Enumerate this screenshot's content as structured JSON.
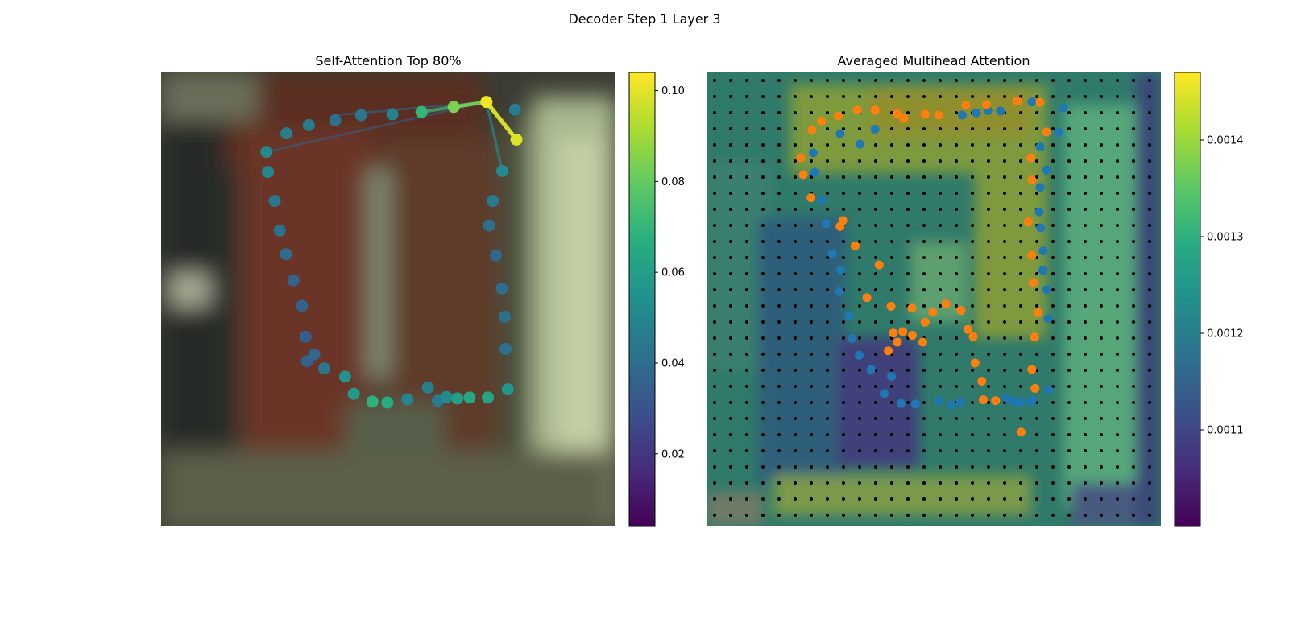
{
  "figure": {
    "title": "Decoder Step 1 Layer 3"
  },
  "chart_data": [
    {
      "type": "scatter",
      "title": "Self-Attention Top 80%",
      "xlim": [
        0,
        1
      ],
      "ylim": [
        0,
        1
      ],
      "grid": false,
      "colorbar": {
        "colormap": "viridis",
        "range": [
          0.004,
          0.104
        ],
        "tick_values": [
          0.02,
          0.04,
          0.06,
          0.08,
          0.1
        ],
        "tick_labels": [
          "0.02",
          "0.04",
          "0.06",
          "0.08",
          "0.10"
        ]
      },
      "query_point": {
        "x": 0.716,
        "y": 0.935,
        "value": 0.102
      },
      "links": [
        {
          "x": 0.782,
          "y": 0.852,
          "value": 0.099
        },
        {
          "x": 0.644,
          "y": 0.924,
          "value": 0.084
        },
        {
          "x": 0.573,
          "y": 0.913,
          "value": 0.07
        },
        {
          "x": 0.751,
          "y": 0.783,
          "value": 0.052
        },
        {
          "x": 0.232,
          "y": 0.825,
          "value": 0.035
        },
        {
          "x": 0.383,
          "y": 0.906,
          "value": 0.036
        }
      ],
      "points": [
        {
          "x": 0.716,
          "y": 0.935,
          "value": 0.102
        },
        {
          "x": 0.644,
          "y": 0.924,
          "value": 0.084
        },
        {
          "x": 0.573,
          "y": 0.913,
          "value": 0.07
        },
        {
          "x": 0.509,
          "y": 0.908,
          "value": 0.048
        },
        {
          "x": 0.44,
          "y": 0.906,
          "value": 0.044
        },
        {
          "x": 0.383,
          "y": 0.895,
          "value": 0.042
        },
        {
          "x": 0.325,
          "y": 0.884,
          "value": 0.046
        },
        {
          "x": 0.276,
          "y": 0.866,
          "value": 0.047
        },
        {
          "x": 0.232,
          "y": 0.825,
          "value": 0.052
        },
        {
          "x": 0.235,
          "y": 0.781,
          "value": 0.05
        },
        {
          "x": 0.25,
          "y": 0.717,
          "value": 0.044
        },
        {
          "x": 0.261,
          "y": 0.652,
          "value": 0.042
        },
        {
          "x": 0.275,
          "y": 0.6,
          "value": 0.04
        },
        {
          "x": 0.291,
          "y": 0.542,
          "value": 0.037
        },
        {
          "x": 0.31,
          "y": 0.486,
          "value": 0.036
        },
        {
          "x": 0.318,
          "y": 0.418,
          "value": 0.034
        },
        {
          "x": 0.321,
          "y": 0.364,
          "value": 0.036
        },
        {
          "x": 0.337,
          "y": 0.379,
          "value": 0.038
        },
        {
          "x": 0.359,
          "y": 0.348,
          "value": 0.044
        },
        {
          "x": 0.405,
          "y": 0.33,
          "value": 0.055
        },
        {
          "x": 0.424,
          "y": 0.292,
          "value": 0.058
        },
        {
          "x": 0.465,
          "y": 0.275,
          "value": 0.068
        },
        {
          "x": 0.498,
          "y": 0.273,
          "value": 0.066
        },
        {
          "x": 0.542,
          "y": 0.28,
          "value": 0.049
        },
        {
          "x": 0.587,
          "y": 0.306,
          "value": 0.047
        },
        {
          "x": 0.609,
          "y": 0.277,
          "value": 0.045
        },
        {
          "x": 0.628,
          "y": 0.285,
          "value": 0.052
        },
        {
          "x": 0.652,
          "y": 0.282,
          "value": 0.06
        },
        {
          "x": 0.679,
          "y": 0.284,
          "value": 0.064
        },
        {
          "x": 0.719,
          "y": 0.284,
          "value": 0.062
        },
        {
          "x": 0.763,
          "y": 0.302,
          "value": 0.057
        },
        {
          "x": 0.758,
          "y": 0.391,
          "value": 0.042
        },
        {
          "x": 0.756,
          "y": 0.462,
          "value": 0.041
        },
        {
          "x": 0.75,
          "y": 0.524,
          "value": 0.04
        },
        {
          "x": 0.737,
          "y": 0.597,
          "value": 0.038
        },
        {
          "x": 0.722,
          "y": 0.663,
          "value": 0.041
        },
        {
          "x": 0.73,
          "y": 0.717,
          "value": 0.045
        },
        {
          "x": 0.751,
          "y": 0.783,
          "value": 0.052
        },
        {
          "x": 0.782,
          "y": 0.852,
          "value": 0.099
        },
        {
          "x": 0.779,
          "y": 0.918,
          "value": 0.046
        }
      ]
    },
    {
      "type": "heatmap",
      "title": "Averaged Multihead Attention",
      "xlim": [
        0,
        1
      ],
      "ylim": [
        0,
        1
      ],
      "grid_points": {
        "rows": 28,
        "cols": 28,
        "marker": "black dot"
      },
      "colorbar": {
        "colormap": "viridis",
        "range": [
          0.001,
          0.00147
        ],
        "tick_values": [
          0.0011,
          0.0012,
          0.0013,
          0.0014
        ],
        "tick_labels": [
          "0.0011",
          "0.0012",
          "0.0013",
          "0.0014"
        ]
      },
      "series": [
        {
          "color": "#1f77b4",
          "points": [
            [
              0.235,
              0.823
            ],
            [
              0.238,
              0.78
            ],
            [
              0.253,
              0.719
            ],
            [
              0.263,
              0.667
            ],
            [
              0.277,
              0.601
            ],
            [
              0.292,
              0.517
            ],
            [
              0.296,
              0.565
            ],
            [
              0.294,
              0.865
            ],
            [
              0.314,
              0.464
            ],
            [
              0.32,
              0.414
            ],
            [
              0.336,
              0.377
            ],
            [
              0.338,
              0.842
            ],
            [
              0.362,
              0.346
            ],
            [
              0.371,
              0.875
            ],
            [
              0.391,
              0.293
            ],
            [
              0.407,
              0.331
            ],
            [
              0.428,
              0.271
            ],
            [
              0.46,
              0.27
            ],
            [
              0.511,
              0.276
            ],
            [
              0.54,
              0.268
            ],
            [
              0.559,
              0.273
            ],
            [
              0.563,
              0.906
            ],
            [
              0.594,
              0.911
            ],
            [
              0.619,
              0.916
            ],
            [
              0.647,
              0.915
            ],
            [
              0.661,
              0.283
            ],
            [
              0.678,
              0.275
            ],
            [
              0.69,
              0.274
            ],
            [
              0.714,
              0.274
            ],
            [
              0.716,
              0.935
            ],
            [
              0.785,
              0.922
            ],
            [
              0.775,
              0.868
            ],
            [
              0.734,
              0.836
            ],
            [
              0.749,
              0.785
            ],
            [
              0.734,
              0.747
            ],
            [
              0.732,
              0.693
            ],
            [
              0.735,
              0.658
            ],
            [
              0.741,
              0.607
            ],
            [
              0.74,
              0.564
            ],
            [
              0.749,
              0.522
            ],
            [
              0.752,
              0.458
            ],
            [
              0.717,
              0.279
            ],
            [
              0.753,
              0.301
            ]
          ]
        },
        {
          "color": "#ff7f0e",
          "points": [
            [
              0.207,
              0.812
            ],
            [
              0.213,
              0.775
            ],
            [
              0.232,
              0.873
            ],
            [
              0.23,
              0.724
            ],
            [
              0.253,
              0.893
            ],
            [
              0.29,
              0.904
            ],
            [
              0.294,
              0.661
            ],
            [
              0.332,
              0.917
            ],
            [
              0.371,
              0.917
            ],
            [
              0.42,
              0.909
            ],
            [
              0.434,
              0.899
            ],
            [
              0.481,
              0.908
            ],
            [
              0.511,
              0.906
            ],
            [
              0.571,
              0.928
            ],
            [
              0.616,
              0.929
            ],
            [
              0.684,
              0.937
            ],
            [
              0.734,
              0.934
            ],
            [
              0.748,
              0.869
            ],
            [
              0.714,
              0.812
            ],
            [
              0.716,
              0.763
            ],
            [
              0.708,
              0.671
            ],
            [
              0.716,
              0.597
            ],
            [
              0.719,
              0.537
            ],
            [
              0.73,
              0.471
            ],
            [
              0.722,
              0.417
            ],
            [
              0.716,
              0.346
            ],
            [
              0.723,
              0.304
            ],
            [
              0.692,
              0.208
            ],
            [
              0.636,
              0.277
            ],
            [
              0.609,
              0.279
            ],
            [
              0.606,
              0.32
            ],
            [
              0.591,
              0.36
            ],
            [
              0.587,
              0.418
            ],
            [
              0.575,
              0.434
            ],
            [
              0.56,
              0.476
            ],
            [
              0.527,
              0.49
            ],
            [
              0.498,
              0.472
            ],
            [
              0.481,
              0.45
            ],
            [
              0.476,
              0.406
            ],
            [
              0.453,
              0.421
            ],
            [
              0.432,
              0.429
            ],
            [
              0.452,
              0.481
            ],
            [
              0.411,
              0.426
            ],
            [
              0.42,
              0.406
            ],
            [
              0.4,
              0.387
            ],
            [
              0.406,
              0.485
            ],
            [
              0.38,
              0.576
            ],
            [
              0.353,
              0.504
            ],
            [
              0.327,
              0.618
            ],
            [
              0.3,
              0.674
            ]
          ]
        }
      ]
    }
  ]
}
